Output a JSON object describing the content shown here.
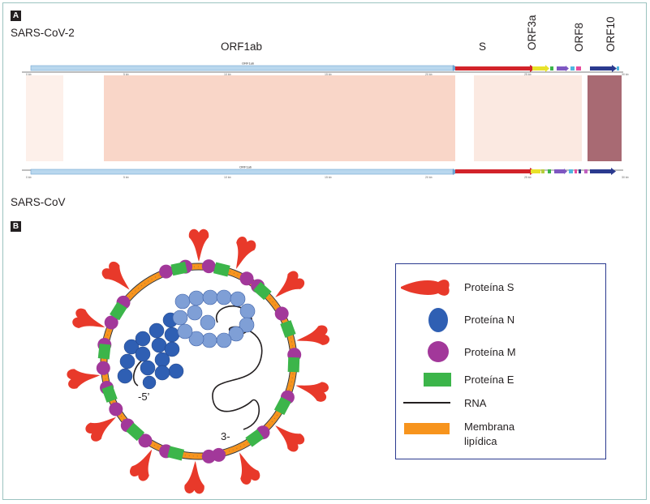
{
  "panel_a": {
    "tag": "A",
    "genome_top_label": "SARS-CoV-2",
    "genome_bottom_label": "SARS-CoV",
    "gene_labels": {
      "orf1ab": "ORF1ab",
      "s": "S",
      "orf3a": "ORF3a",
      "orf8": "ORF8",
      "orf10": "ORF10"
    }
  },
  "panel_b": {
    "tag": "B",
    "rna_5_label": "-5’",
    "rna_3_label": "3-"
  },
  "legend": {
    "items": [
      {
        "label": "Proteína S",
        "icon": "spike-icon",
        "color": "#e8392a"
      },
      {
        "label": "Proteína N",
        "icon": "n-protein-icon",
        "color": "#2f5fb3"
      },
      {
        "label": "Proteína M",
        "icon": "m-protein-icon",
        "color": "#a2389a"
      },
      {
        "label": "Proteína E",
        "icon": "e-protein-icon",
        "color": "#3cb54a"
      },
      {
        "label": "RNA",
        "icon": "rna-line-icon",
        "color": "#231f20"
      },
      {
        "label": "Membrana lipídica",
        "icon": "membrane-icon",
        "color": "#f7941d"
      }
    ]
  },
  "colors": {
    "frame": "#9cc3c0",
    "orf1ab_arrow": "#a6cbe8",
    "s_arrow": "#d2232a",
    "similarity_low": "#f9d2c2",
    "similarity_dark": "#a86a73"
  }
}
